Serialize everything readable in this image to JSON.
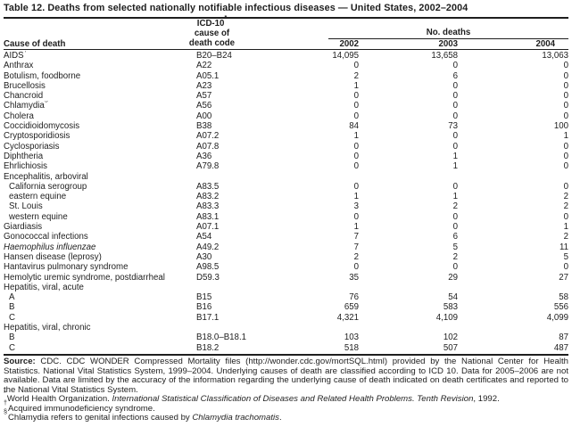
{
  "title": "Table 12. Deaths from selected nationally notifiable infectious diseases — United States, 2002–2004",
  "table": {
    "headers": {
      "cause": "Cause of death",
      "code_line1": "ICD-10",
      "code_line1_sup": "*",
      "code_line2": "cause of",
      "code_line3": "death code",
      "deaths_spanner": "No. deaths",
      "year1": "2002",
      "year2": "2003",
      "year3": "2004"
    },
    "rows": [
      {
        "cause": "AIDS",
        "sup": "†",
        "code": "B20–B24",
        "y2002": "14,095",
        "y2003": "13,658",
        "y2004": "13,063"
      },
      {
        "cause": "Anthrax",
        "code": "A22",
        "y2002": "0",
        "y2003": "0",
        "y2004": "0"
      },
      {
        "cause": "Botulism, foodborne",
        "code": "A05.1",
        "y2002": "2",
        "y2003": "6",
        "y2004": "0"
      },
      {
        "cause": "Brucellosis",
        "code": "A23",
        "y2002": "1",
        "y2003": "0",
        "y2004": "0"
      },
      {
        "cause": "Chancroid",
        "code": "A57",
        "y2002": "0",
        "y2003": "0",
        "y2004": "0"
      },
      {
        "cause": "Chlamydia",
        "sup": "§",
        "code": "A56",
        "y2002": "0",
        "y2003": "0",
        "y2004": "0"
      },
      {
        "cause": "Cholera",
        "code": "A00",
        "y2002": "0",
        "y2003": "0",
        "y2004": "0"
      },
      {
        "cause": "Coccidioidomycosis",
        "code": "B38",
        "y2002": "84",
        "y2003": "73",
        "y2004": "100"
      },
      {
        "cause": "Cryptosporidiosis",
        "code": "A07.2",
        "y2002": "1",
        "y2003": "0",
        "y2004": "1"
      },
      {
        "cause": "Cyclosporiasis",
        "code": "A07.8",
        "y2002": "0",
        "y2003": "0",
        "y2004": "0"
      },
      {
        "cause": "Diphtheria",
        "code": "A36",
        "y2002": "0",
        "y2003": "1",
        "y2004": "0"
      },
      {
        "cause": "Ehrlichiosis",
        "code": "A79.8",
        "y2002": "0",
        "y2003": "1",
        "y2004": "0"
      },
      {
        "cause": "Encephalitis, arboviral",
        "group": true
      },
      {
        "cause": "California serogroup",
        "indent": true,
        "code": "A83.5",
        "y2002": "0",
        "y2003": "0",
        "y2004": "0"
      },
      {
        "cause": "eastern equine",
        "indent": true,
        "code": "A83.2",
        "y2002": "1",
        "y2003": "1",
        "y2004": "2"
      },
      {
        "cause": "St. Louis",
        "indent": true,
        "code": "A83.3",
        "y2002": "3",
        "y2003": "2",
        "y2004": "2"
      },
      {
        "cause": "western equine",
        "indent": true,
        "code": "A83.1",
        "y2002": "0",
        "y2003": "0",
        "y2004": "0"
      },
      {
        "cause": "Giardiasis",
        "code": "A07.1",
        "y2002": "1",
        "y2003": "0",
        "y2004": "1"
      },
      {
        "cause": "Gonococcal infections",
        "code": "A54",
        "y2002": "7",
        "y2003": "6",
        "y2004": "2"
      },
      {
        "cause": "Haemophilus influenzae",
        "italic": true,
        "code": "A49.2",
        "y2002": "7",
        "y2003": "5",
        "y2004": "11"
      },
      {
        "cause": "Hansen disease (leprosy)",
        "code": "A30",
        "y2002": "2",
        "y2003": "2",
        "y2004": "5"
      },
      {
        "cause": "Hantavirus pulmonary syndrome",
        "code": "A98.5",
        "y2002": "0",
        "y2003": "0",
        "y2004": "0"
      },
      {
        "cause": "Hemolytic uremic syndrome, postdiarrheal",
        "code": "D59.3",
        "y2002": "35",
        "y2003": "29",
        "y2004": "27"
      },
      {
        "cause": "Hepatitis, viral, acute",
        "group": true
      },
      {
        "cause": "A",
        "indent": true,
        "code": "B15",
        "y2002": "76",
        "y2003": "54",
        "y2004": "58"
      },
      {
        "cause": "B",
        "indent": true,
        "code": "B16",
        "y2002": "659",
        "y2003": "583",
        "y2004": "556"
      },
      {
        "cause": "C",
        "indent": true,
        "code": "B17.1",
        "y2002": "4,321",
        "y2003": "4,109",
        "y2004": "4,099"
      },
      {
        "cause": "Hepatitis, viral, chronic",
        "group": true
      },
      {
        "cause": "B",
        "indent": true,
        "code": "B18.0–B18.1",
        "y2002": "103",
        "y2003": "102",
        "y2004": "87"
      },
      {
        "cause": "C",
        "indent": true,
        "code": "B18.2",
        "y2002": "518",
        "y2003": "507",
        "y2004": "487"
      }
    ]
  },
  "footnotes": {
    "source_label": "Source:",
    "source_text": " CDC. CDC WONDER Compressed Mortality files (http://wonder.cdc.gov/mortSQL.html) provided by the National Center for Health Statistics. National Vital Statistics System, 1999–2004. Underlying causes of death are classified according to ICD 10. Data for 2005–2006 are not available. Data are limited by the accuracy of the information regarding the underlying cause of death indicated on death certificates and reported to the National Vital Statistics System.",
    "notes": [
      {
        "marker": "*",
        "pre": "World Health Organization. ",
        "italic": "International Statistical Classification of Diseases and Related Health Problems. Tenth Revision",
        "post": ", 1992."
      },
      {
        "marker": "†",
        "pre": "Acquired immunodeficiency syndrome.",
        "italic": "",
        "post": ""
      },
      {
        "marker": "§",
        "pre": "Chlamydia refers to genital infections caused by ",
        "italic": "Chlamydia trachomatis",
        "post": "."
      }
    ]
  }
}
